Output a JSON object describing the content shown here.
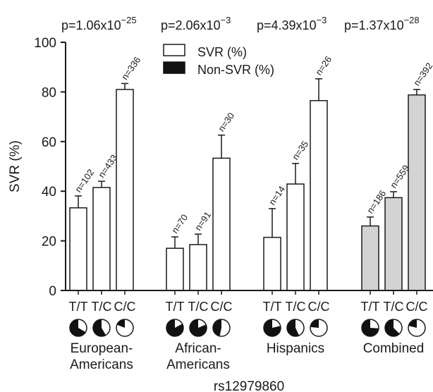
{
  "chart_data": {
    "type": "bar",
    "ylabel": "SVR (%)",
    "xlabel": "rs12979860",
    "ylim": [
      0,
      100
    ],
    "yticks": [
      0,
      20,
      40,
      60,
      80,
      100
    ],
    "legend": {
      "placement": "top-left",
      "entries": [
        {
          "label": "SVR (%)",
          "color": "#ffffff"
        },
        {
          "label": "Non-SVR (%)",
          "color": "#111111"
        }
      ]
    },
    "groups": [
      {
        "name_lines": [
          "European-",
          "Americans"
        ],
        "p_base": "p=1.06x10",
        "p_exp": "−25",
        "fill": "#ffffff",
        "bars": [
          {
            "genotype": "T/T",
            "value": 33.3,
            "error": 4.8,
            "n_label": "n=102",
            "pie_svr": 33.3
          },
          {
            "genotype": "T/C",
            "value": 41.5,
            "error": 2.5,
            "n_label": "n=433",
            "pie_svr": 41.5
          },
          {
            "genotype": "C/C",
            "value": 81.0,
            "error": 2.4,
            "n_label": "n=336",
            "pie_svr": 81.0
          }
        ]
      },
      {
        "name_lines": [
          "African-",
          "Americans"
        ],
        "p_base": "p=2.06x10",
        "p_exp": "−3",
        "fill": "#ffffff",
        "bars": [
          {
            "genotype": "T/T",
            "value": 17.0,
            "error": 4.6,
            "n_label": "n=70",
            "pie_svr": 17.0
          },
          {
            "genotype": "T/C",
            "value": 18.5,
            "error": 4.2,
            "n_label": "n=91",
            "pie_svr": 18.5
          },
          {
            "genotype": "C/C",
            "value": 53.3,
            "error": 9.3,
            "n_label": "n=30",
            "pie_svr": 53.3
          }
        ]
      },
      {
        "name_lines": [
          "Hispanics"
        ],
        "p_base": "p=4.39x10",
        "p_exp": "−3",
        "fill": "#ffffff",
        "bars": [
          {
            "genotype": "T/T",
            "value": 21.4,
            "error": 11.6,
            "n_label": "n=14",
            "pie_svr": 21.4
          },
          {
            "genotype": "T/C",
            "value": 42.9,
            "error": 8.3,
            "n_label": "n=35",
            "pie_svr": 42.9
          },
          {
            "genotype": "C/C",
            "value": 76.5,
            "error": 8.8,
            "n_label": "n=26",
            "pie_svr": 76.5
          }
        ]
      },
      {
        "name_lines": [
          "Combined"
        ],
        "p_base": "p=1.37x10",
        "p_exp": "−28",
        "fill": "#d3d3d3",
        "bars": [
          {
            "genotype": "T/T",
            "value": 26.0,
            "error": 3.6,
            "n_label": "n=186",
            "pie_svr": 26.0
          },
          {
            "genotype": "T/C",
            "value": 37.4,
            "error": 2.4,
            "n_label": "n=559",
            "pie_svr": 37.4
          },
          {
            "genotype": "C/C",
            "value": 78.8,
            "error": 2.2,
            "n_label": "n=392",
            "pie_svr": 78.8
          }
        ]
      }
    ]
  }
}
